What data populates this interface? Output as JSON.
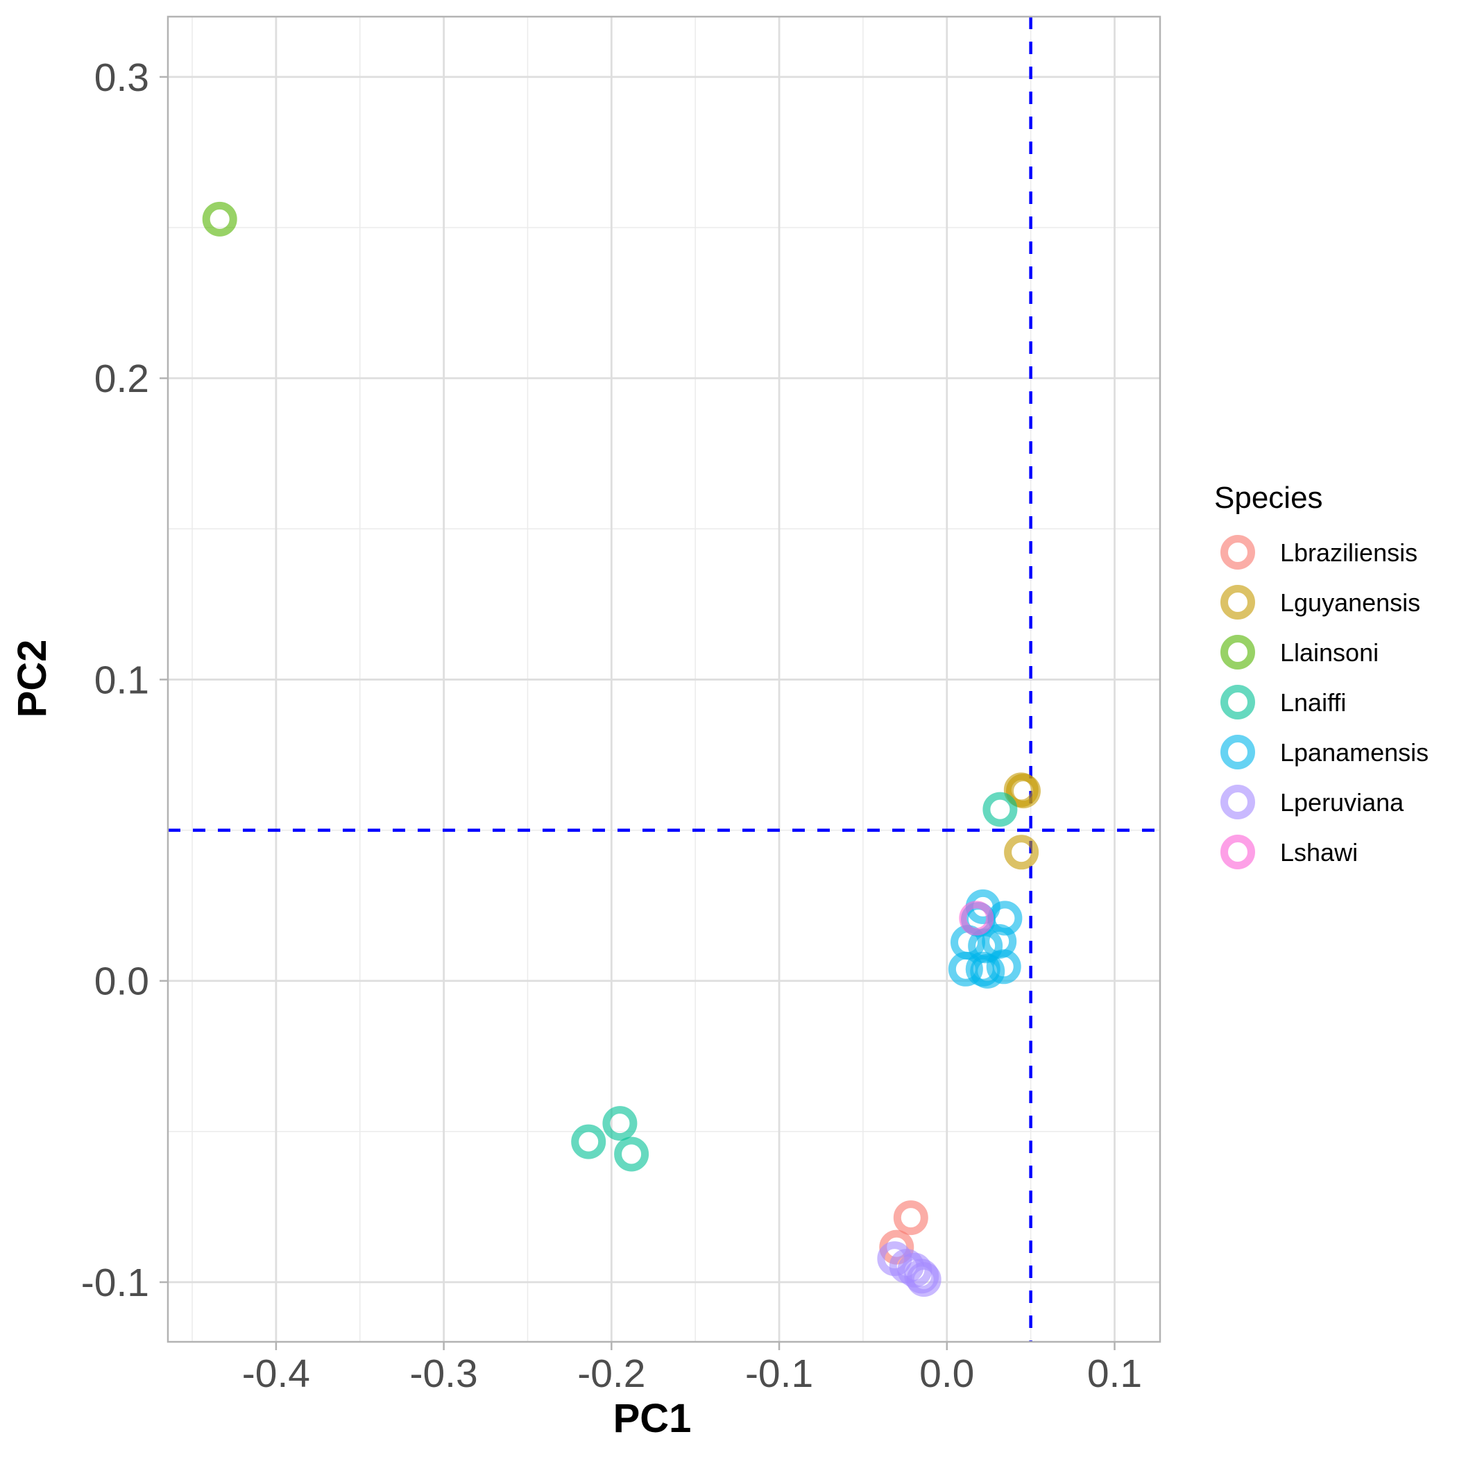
{
  "chart_data": {
    "type": "scatter",
    "title": "",
    "xlabel": "PC1",
    "ylabel": "PC2",
    "xlim": [
      -0.4645,
      0.1271
    ],
    "ylim": [
      -0.1198,
      0.32
    ],
    "x_ticks": [
      -0.4,
      -0.3,
      -0.2,
      -0.1,
      0.0,
      0.1
    ],
    "x_tick_labels": [
      "-0.4",
      "-0.3",
      "-0.2",
      "-0.1",
      "0.0",
      "0.1"
    ],
    "y_ticks": [
      -0.1,
      0.0,
      0.1,
      0.2,
      0.3
    ],
    "y_tick_labels": [
      "-0.1",
      "0.0",
      "0.1",
      "0.2",
      "0.3"
    ],
    "x_minor_ticks": [
      -0.45,
      -0.35,
      -0.25,
      -0.15,
      -0.05,
      0.05
    ],
    "y_minor_ticks": [
      -0.05,
      0.05,
      0.15,
      0.25
    ],
    "grid": true,
    "reference_lines": [
      {
        "orientation": "vertical",
        "value": 0.05,
        "style": "dashed",
        "color": "#0000FF"
      },
      {
        "orientation": "horizontal",
        "value": 0.05,
        "style": "dashed",
        "color": "#0000FF"
      }
    ],
    "marker": "open-circle",
    "marker_alpha": 0.6,
    "legend": {
      "title": "Species",
      "position": "right"
    },
    "series": [
      {
        "name": "Lbraziliensis",
        "color": "#F8766D",
        "points": [
          [
            -0.0215,
            -0.0786
          ],
          [
            -0.03,
            -0.0884
          ]
        ]
      },
      {
        "name": "Lguyanensis",
        "color": "#C49A00",
        "points": [
          [
            0.0443,
            0.0634
          ],
          [
            0.0456,
            0.063
          ],
          [
            0.0444,
            0.0427
          ]
        ]
      },
      {
        "name": "Llainsoni",
        "color": "#53B400",
        "points": [
          [
            -0.4336,
            0.2528
          ]
        ]
      },
      {
        "name": "Lnaiffi",
        "color": "#00C094",
        "points": [
          [
            0.0317,
            0.0569
          ],
          [
            -0.2137,
            -0.0534
          ],
          [
            -0.195,
            -0.0473
          ],
          [
            -0.1881,
            -0.0575
          ]
        ]
      },
      {
        "name": "Lpanamensis",
        "color": "#00B6EB",
        "points": [
          [
            0.0215,
            0.0246
          ],
          [
            0.0187,
            0.0204
          ],
          [
            0.0346,
            0.0208
          ],
          [
            0.0125,
            0.0128
          ],
          [
            0.0312,
            0.0131
          ],
          [
            0.0229,
            0.0116
          ],
          [
            0.0112,
            0.0039
          ],
          [
            0.0215,
            0.0039
          ],
          [
            0.0339,
            0.0047
          ],
          [
            0.0242,
            0.0032
          ]
        ]
      },
      {
        "name": "Lperuviana",
        "color": "#A58AFF",
        "points": [
          [
            -0.0312,
            -0.0922
          ],
          [
            -0.024,
            -0.0947
          ],
          [
            -0.0192,
            -0.096
          ],
          [
            -0.0151,
            -0.098
          ],
          [
            -0.0137,
            -0.0991
          ]
        ]
      },
      {
        "name": "Lshawi",
        "color": "#FB61D7",
        "points": [
          [
            0.0176,
            0.0208
          ]
        ]
      }
    ]
  }
}
